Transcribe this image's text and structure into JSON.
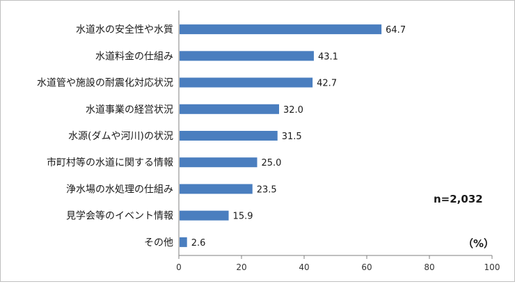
{
  "chart_data": {
    "type": "bar",
    "orientation": "horizontal",
    "categories": [
      "水道水の安全性や水質",
      "水道料金の仕組み",
      "水道管や施設の耐震化対応状況",
      "水道事業の経営状況",
      "水源(ダムや河川)の状況",
      "市町村等の水道に関する情報",
      "浄水場の水処理の仕組み",
      "見学会等のイベント情報",
      "その他"
    ],
    "values": [
      64.7,
      43.1,
      42.7,
      32.0,
      31.5,
      25.0,
      23.5,
      15.9,
      2.6
    ],
    "value_labels": [
      "64.7",
      "43.1",
      "42.7",
      "32.0",
      "31.5",
      "25.0",
      "23.5",
      "15.9",
      "2.6"
    ],
    "xlim": [
      0,
      100
    ],
    "xticks": [
      "0",
      "20",
      "40",
      "60",
      "80",
      "100"
    ],
    "unit_label": "（%）",
    "sample_note": "n=2,032",
    "bar_color": "#4a7ebf",
    "grid": false
  }
}
